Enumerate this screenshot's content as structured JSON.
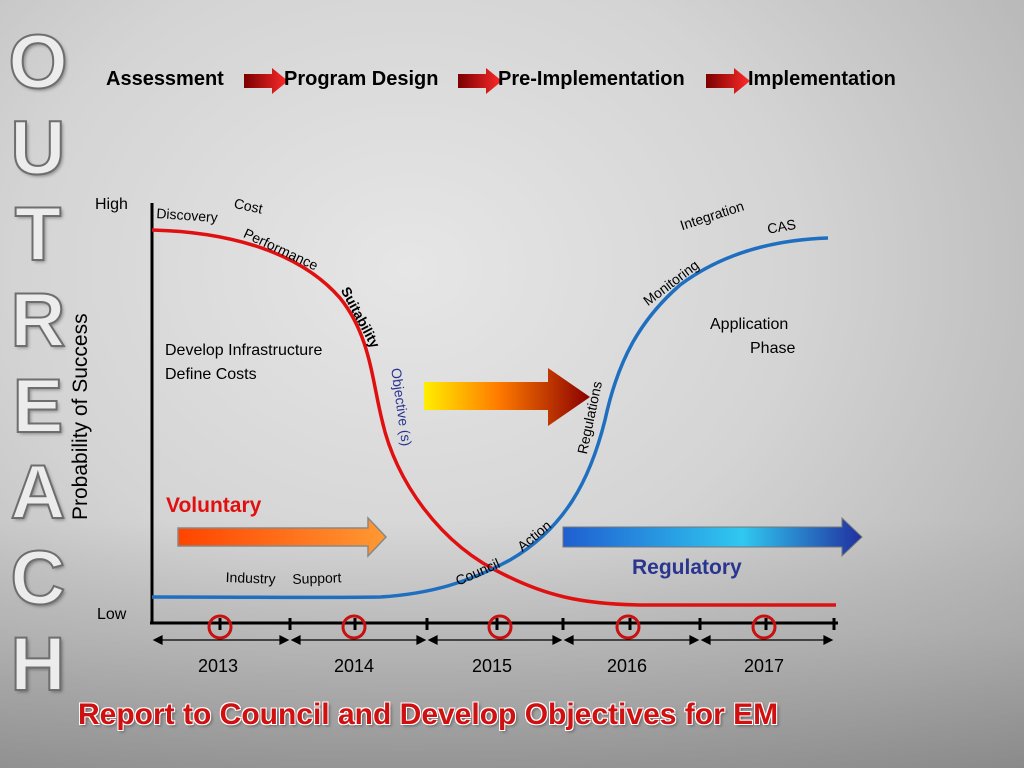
{
  "outreach_letters": [
    "O",
    "U",
    "T",
    "R",
    "E",
    "A",
    "C",
    "H"
  ],
  "process": {
    "steps": [
      "Assessment",
      "Program Design",
      "Pre-Implementation",
      "Implementation"
    ]
  },
  "axis": {
    "y_label": "Probability of Success",
    "high": "High",
    "low": "Low",
    "years": [
      "2013",
      "2014",
      "2015",
      "2016",
      "2017"
    ]
  },
  "red_curve_labels": {
    "discovery": "Discovery",
    "cost": "Cost",
    "performance": "Performance",
    "suitability": "Suitability",
    "objectives": "Objective (s)"
  },
  "blue_curve_labels": {
    "integration": "Integration",
    "cas": "CAS",
    "monitoring": "Monitoring",
    "regulations": "Regulations",
    "council": "Council",
    "action": "Action",
    "industry": "Industry",
    "support": "Support"
  },
  "text": {
    "develop_infrastructure": "Develop Infrastructure",
    "define_costs": "Define Costs",
    "application": "Application",
    "phase": "Phase",
    "voluntary": "Voluntary",
    "regulatory": "Regulatory"
  },
  "bottom_title": "Report to Council and Develop Objectives for EM",
  "colors": {
    "red_curve": "#e01010",
    "blue_curve": "#1f6fc0",
    "voluntary": "#e01010",
    "regulatory": "#2a3590",
    "objectives": "#2a3590",
    "marker_ring": "#c81010",
    "title": "#d01010"
  }
}
